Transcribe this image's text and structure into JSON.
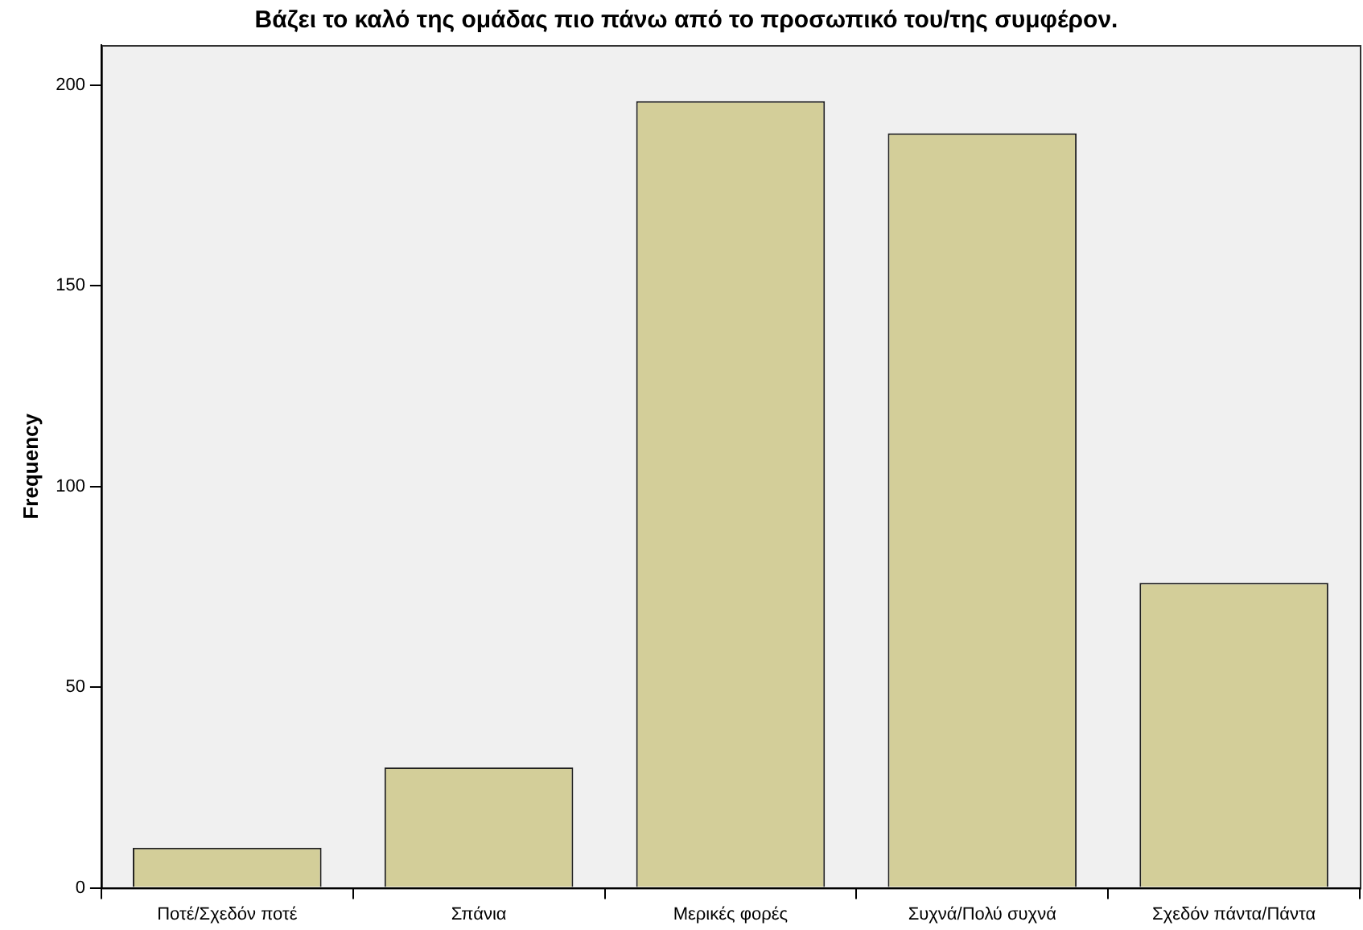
{
  "chart_data": {
    "type": "bar",
    "title": "Βάζει το καλό της ομάδας πιο πάνω από το προσωπικό του/της συμφέρον.",
    "ylabel": "Frequency",
    "categories": [
      "Ποτέ/Σχεδόν ποτέ",
      "Σπάνια",
      "Μερικές φορές",
      "Συχνά/Πολύ συχνά",
      "Σχεδόν πάντα/Πάντα"
    ],
    "values": [
      10,
      30,
      196,
      188,
      76
    ],
    "color": "#d3ce99",
    "ylim": [
      0,
      210
    ],
    "yticks": [
      0,
      50,
      100,
      150,
      200
    ],
    "grid": false,
    "legend": false
  }
}
